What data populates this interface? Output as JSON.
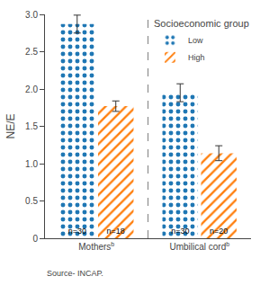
{
  "chart_data": {
    "type": "bar",
    "categories": [
      "Mothers",
      "Umbilical cord"
    ],
    "category_superscripts": [
      "b",
      "b"
    ],
    "series": [
      {
        "name": "Low",
        "values": [
          2.87,
          1.95
        ],
        "errors": [
          0.12,
          0.12
        ],
        "n_labels": [
          "n=30",
          "n=30"
        ]
      },
      {
        "name": "High",
        "values": [
          1.77,
          1.14
        ],
        "errors": [
          0.07,
          0.1
        ],
        "n_labels": [
          "n=18",
          "n=20"
        ]
      }
    ],
    "ylabel": "NE/E",
    "ylim": [
      0,
      3.0
    ],
    "yticks": [
      0,
      0.5,
      {
        "value": 1.0,
        "label": "1.0"
      },
      1.5,
      {
        "value": 2.0,
        "label": "2.0"
      },
      2.5,
      {
        "value": 3.0,
        "label": "3.0"
      }
    ],
    "legend_title": "Socioeconomic group",
    "legend": "upper right",
    "grid": false,
    "source": "Source- INCAP."
  }
}
